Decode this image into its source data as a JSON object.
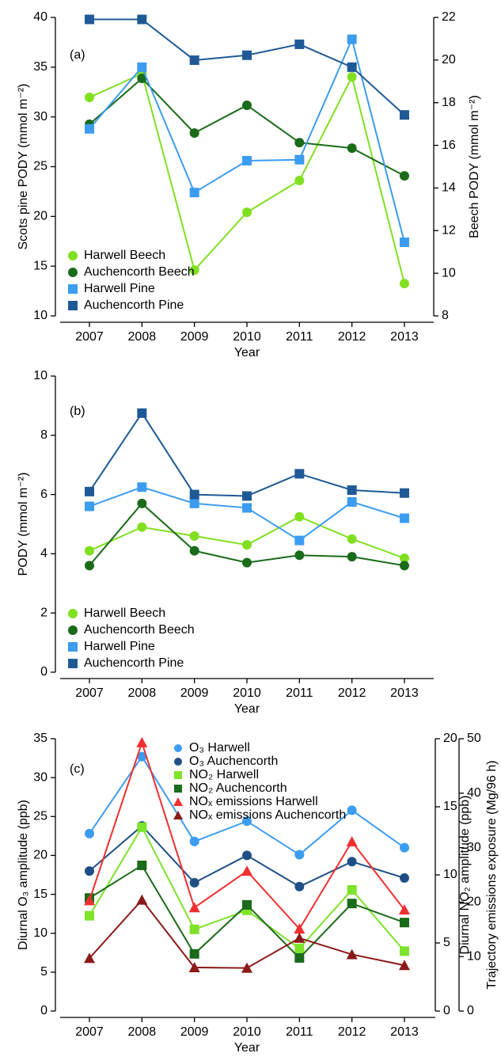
{
  "chart_data": [
    {
      "type": "line",
      "panel_label": "(a)",
      "xlabel": "Year",
      "ylabel": "Scots pine PODY (mmol m⁻²)",
      "y2label": "Beech PODY (mmol m⁻²)",
      "categories": [
        "2007",
        "2008",
        "2009",
        "2010",
        "2011",
        "2012",
        "2013"
      ],
      "ylim": [
        10,
        40
      ],
      "yticks": [
        10,
        15,
        20,
        25,
        30,
        35,
        40
      ],
      "y2lim": [
        8,
        22
      ],
      "y2ticks": [
        8,
        10,
        12,
        14,
        16,
        18,
        20,
        22
      ],
      "legend": "lower left",
      "series": [
        {
          "name": "Harwell Beech",
          "color": "#80e020",
          "marker": "circle",
          "axis": "y2",
          "values": [
            18.25,
            19.36,
            10.15,
            12.86,
            14.35,
            19.21,
            9.52
          ]
        },
        {
          "name": "Auchencorth Beech",
          "color": "#1a6b1a",
          "marker": "circle",
          "axis": "y2",
          "values": [
            16.99,
            19.14,
            16.58,
            17.88,
            16.13,
            15.87,
            14.57
          ]
        },
        {
          "name": "Harwell Pine",
          "color": "#3c9cf0",
          "marker": "square",
          "values": [
            28.8,
            35,
            22.4,
            25.6,
            25.7,
            37.8,
            17.4
          ]
        },
        {
          "name": "Auchencorth Pine",
          "color": "#1f5a96",
          "marker": "square",
          "values": [
            39.8,
            39.8,
            35.7,
            36.2,
            37.3,
            35.0,
            30.2
          ]
        }
      ]
    },
    {
      "type": "line",
      "panel_label": "(b)",
      "xlabel": "Year",
      "ylabel": "PODY (mmol m⁻²)",
      "categories": [
        "2007",
        "2008",
        "2009",
        "2010",
        "2011",
        "2012",
        "2013"
      ],
      "ylim": [
        0,
        10
      ],
      "yticks": [
        0,
        2,
        4,
        6,
        8,
        10
      ],
      "legend": "lower left",
      "series": [
        {
          "name": "Harwell Beech",
          "color": "#80e020",
          "marker": "circle",
          "values": [
            4.1,
            4.9,
            4.6,
            4.3,
            5.25,
            4.5,
            3.85
          ]
        },
        {
          "name": "Auchencorth Beech",
          "color": "#1a6b1a",
          "marker": "circle",
          "values": [
            3.6,
            5.7,
            4.1,
            3.7,
            3.95,
            3.9,
            3.6
          ]
        },
        {
          "name": "Harwell Pine",
          "color": "#3c9cf0",
          "marker": "square",
          "values": [
            5.6,
            6.25,
            5.7,
            5.55,
            4.45,
            5.75,
            5.2
          ]
        },
        {
          "name": "Auchencorth Pine",
          "color": "#1f5a96",
          "marker": "square",
          "values": [
            6.1,
            8.75,
            6.0,
            5.95,
            6.7,
            6.15,
            6.05
          ]
        }
      ]
    },
    {
      "type": "line",
      "panel_label": "(c)",
      "xlabel": "Year",
      "ylabel": "Diurnal O₃ amplitude (ppb)",
      "y2label": "Diurnal NO₂ amplitude (ppb)",
      "y3label": "Trajectory emissions exposure (Mg/96 h)",
      "categories": [
        "2007",
        "2008",
        "2009",
        "2010",
        "2011",
        "2012",
        "2013"
      ],
      "ylim": [
        0,
        35
      ],
      "yticks": [
        0,
        5,
        10,
        15,
        20,
        25,
        30,
        35
      ],
      "y2lim": [
        0,
        20
      ],
      "y2ticks": [
        0,
        5,
        10,
        15,
        20
      ],
      "y3lim": [
        0,
        50
      ],
      "y3ticks": [
        0,
        10,
        20,
        30,
        40,
        50
      ],
      "legend": "upper center",
      "series": [
        {
          "name": "O₃ Harwell",
          "color": "#3c9cf0",
          "marker": "circle",
          "values": [
            22.8,
            32.7,
            21.8,
            24.4,
            20.1,
            25.8,
            21.0
          ]
        },
        {
          "name": "O₃ Auchencorth",
          "color": "#1f4f86",
          "marker": "circle",
          "values": [
            18.0,
            23.8,
            16.5,
            20.0,
            16.0,
            19.2,
            17.1
          ]
        },
        {
          "name": "NO₂ Harwell",
          "color": "#7ee32a",
          "marker": "square",
          "axis": "y2",
          "values": [
            7.0,
            13.5,
            6.0,
            7.4,
            4.6,
            8.9,
            4.4
          ]
        },
        {
          "name": "NO₂ Auchencorth",
          "color": "#1a6b1a",
          "marker": "square",
          "axis": "y2",
          "values": [
            8.3,
            10.7,
            4.2,
            7.8,
            3.9,
            7.9,
            6.5
          ]
        },
        {
          "name": "NOₓ emissions Harwell",
          "color": "#f03030",
          "marker": "triangle",
          "axis": "y3",
          "values": [
            20.3,
            49.3,
            19.0,
            25.7,
            15.1,
            31.1,
            18.6
          ]
        },
        {
          "name": "NOₓ emissions Auchencorth",
          "color": "#8b1a1a",
          "marker": "triangle",
          "axis": "y3",
          "values": [
            9.7,
            20.4,
            8.0,
            7.9,
            13.4,
            10.4,
            8.4
          ]
        }
      ]
    }
  ]
}
